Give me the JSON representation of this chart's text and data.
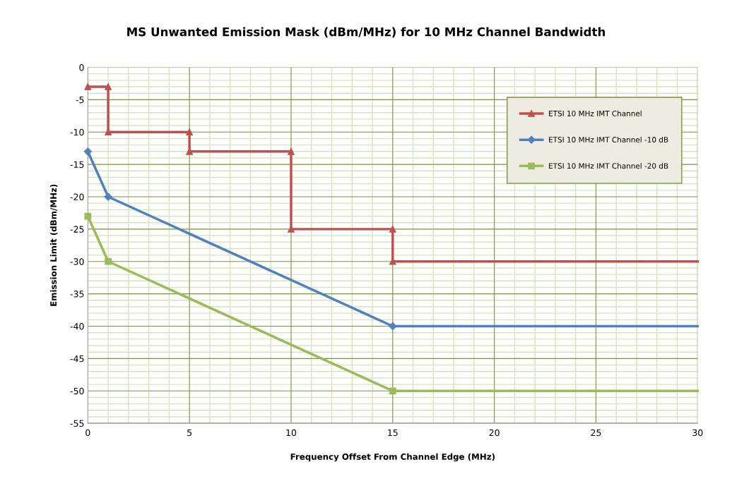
{
  "chart_data": {
    "type": "line",
    "title": "MS Unwanted Emission Mask (dBm/MHz) for 10 MHz Channel Bandwidth",
    "xlabel": "Frequency Offset From Channel Edge (MHz)",
    "ylabel": "Emission Limit (dBm/MHz)",
    "xlim": [
      0,
      30
    ],
    "xticks": [
      0,
      5,
      10,
      15,
      20,
      25,
      30
    ],
    "ylim": [
      -55,
      0
    ],
    "yticks": [
      -55,
      -50,
      -45,
      -40,
      -35,
      -30,
      -25,
      -20,
      -15,
      -10,
      -5,
      0
    ],
    "grid": true,
    "legend": "right",
    "line_style": "solid",
    "series": [
      {
        "name": "ETSI 10 MHz IMT Channel",
        "color": "#c0504d",
        "marker": "triangle",
        "x": [
          0,
          1,
          1,
          5,
          5,
          10,
          10,
          15,
          15,
          30
        ],
        "values": [
          -3,
          -3,
          -10,
          -10,
          -13,
          -13,
          -25,
          -25,
          -30,
          -30
        ]
      },
      {
        "name": "ETSI 10 MHz IMT Channel -10 dB",
        "color": "#4f81bd",
        "marker": "diamond",
        "x": [
          0,
          1,
          15,
          30
        ],
        "values": [
          -13,
          -20,
          -40,
          -40
        ]
      },
      {
        "name": "ETSI 10 MHz IMT Channel -20 dB",
        "color": "#9bbb59",
        "marker": "square",
        "x": [
          0,
          1,
          15,
          30
        ],
        "values": [
          -23,
          -30,
          -50,
          -50
        ]
      }
    ]
  }
}
